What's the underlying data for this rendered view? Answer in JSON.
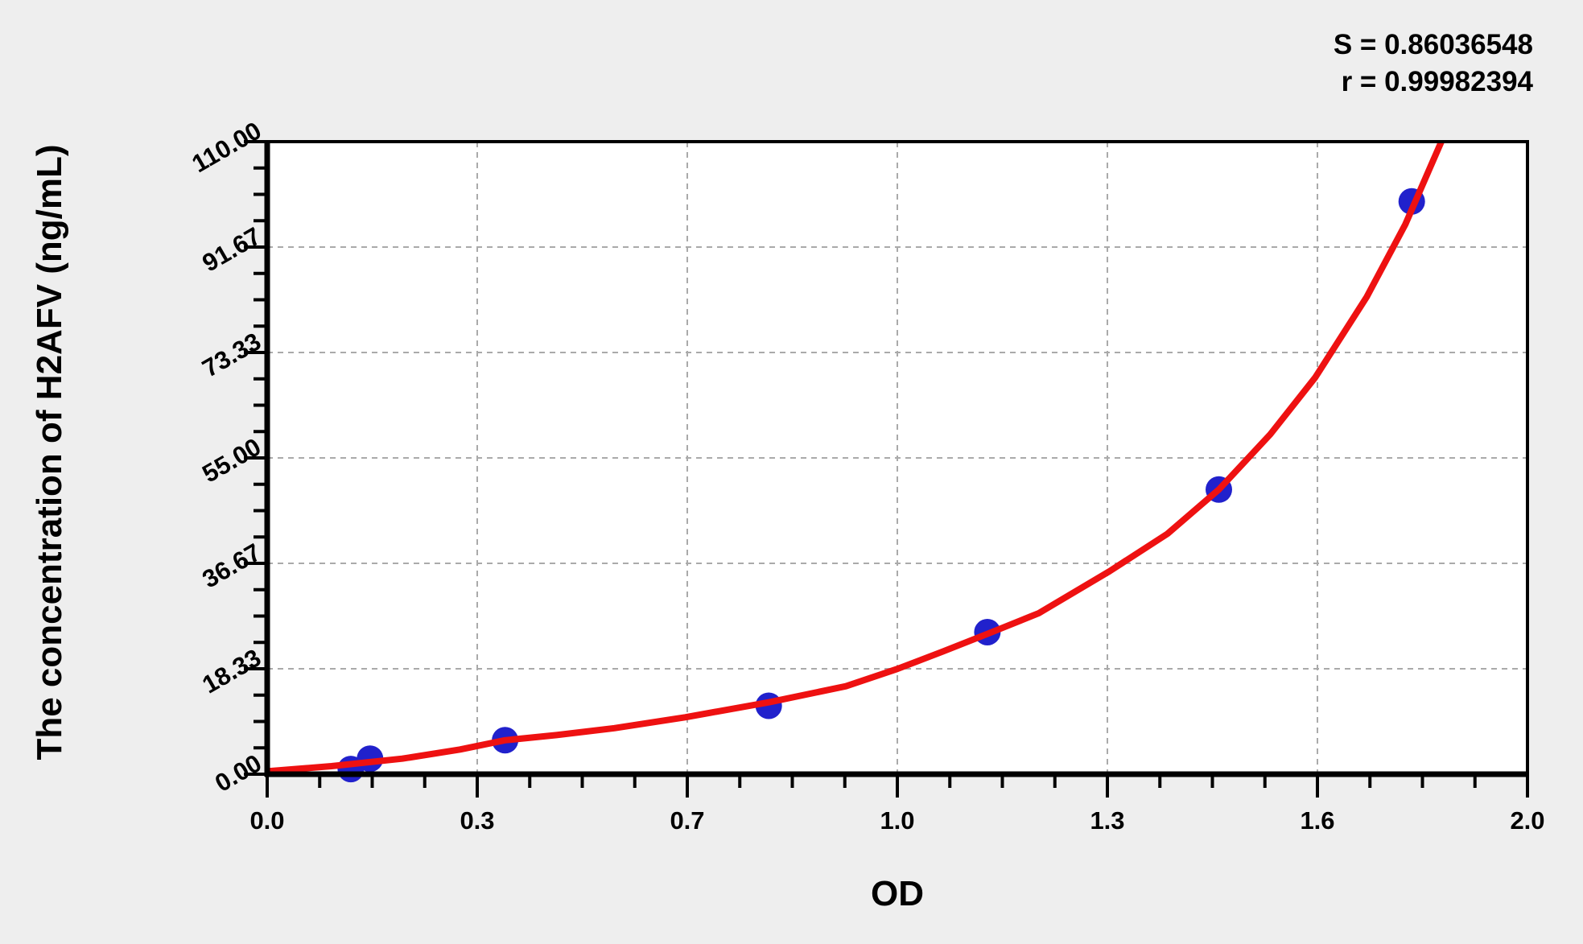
{
  "stats": {
    "s_text": "S = 0.86036548",
    "r_text": "r = 0.99982394"
  },
  "chart_data": {
    "type": "scatter",
    "title": "",
    "xlabel": "OD",
    "ylabel": "The concentration of H2AFV (ng/mL)",
    "x_range": [
      0,
      1.96
    ],
    "y_range": [
      0,
      110
    ],
    "x_tick_labels": [
      "0.0",
      "0.3",
      "0.7",
      "1.0",
      "1.3",
      "1.6",
      "2.0"
    ],
    "y_tick_labels": [
      "0.00",
      "18.33",
      "36.67",
      "55.00",
      "73.33",
      "91.67",
      "110.00"
    ],
    "minor_ticks_between_majors": 3,
    "grid": "dashed gray lines at major ticks",
    "legend_position": "none",
    "stats": {
      "S": 0.86036548,
      "r": 0.99982394
    },
    "points": {
      "x": [
        0.13,
        0.16,
        0.37,
        0.78,
        1.12,
        1.48,
        1.78
      ],
      "y": [
        0.9,
        2.7,
        5.9,
        11.9,
        24.7,
        49.5,
        99.6
      ]
    },
    "fit_curve": {
      "x": [
        0.0,
        0.1,
        0.21,
        0.3,
        0.37,
        0.45,
        0.54,
        0.65,
        0.78,
        0.9,
        0.98,
        1.05,
        1.12,
        1.2,
        1.31,
        1.4,
        1.48,
        1.56,
        1.63,
        1.71,
        1.77,
        1.83
      ],
      "y": [
        0.5,
        1.4,
        2.7,
        4.3,
        5.9,
        6.8,
        8.0,
        9.9,
        12.5,
        15.3,
        18.3,
        21.3,
        24.4,
        28.0,
        35.3,
        41.8,
        49.5,
        59.1,
        69.0,
        83.0,
        95.6,
        111.0
      ]
    },
    "colors": {
      "curve": "#ee1111",
      "points": "#2121cc",
      "grid": "#aaaaaa",
      "axis": "#000000",
      "background": "#eeeeee",
      "plot_background": "#ffffff"
    }
  }
}
